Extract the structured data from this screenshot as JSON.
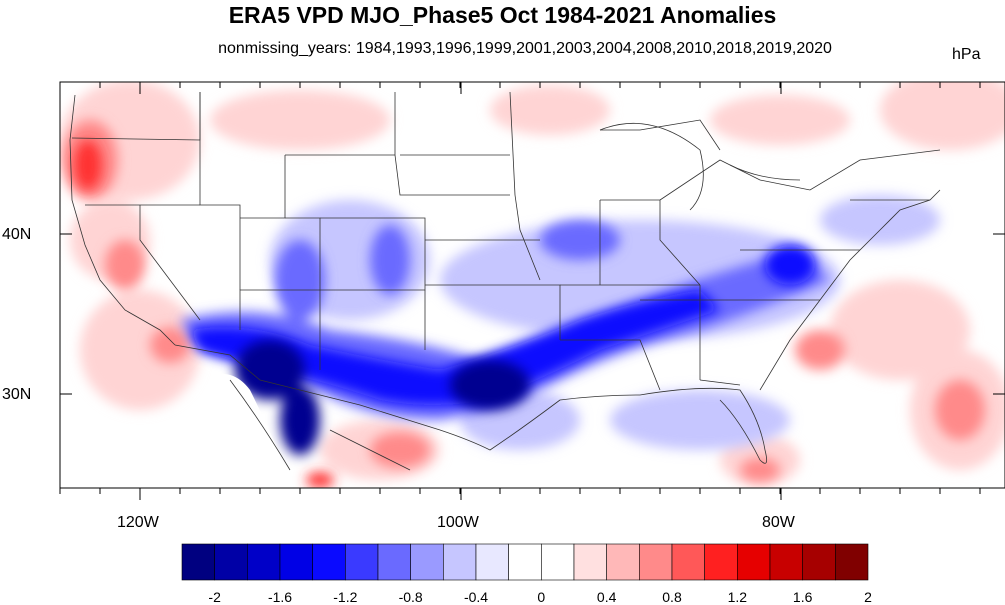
{
  "title": "ERA5 VPD MJO_Phase5 Oct 1984-2021 Anomalies",
  "subtitle": "nonmissing_years: 1984,1993,1996,1999,2001,2003,2004,2008,2010,2018,2019,2020",
  "units": "hPa",
  "lat_labels": [
    "40N",
    "30N"
  ],
  "lon_labels": [
    "120W",
    "100W",
    "80W"
  ],
  "colorbar": {
    "colors": [
      "#000080",
      "#0000a6",
      "#0000c8",
      "#0000e6",
      "#0a0aff",
      "#3a3aff",
      "#6a6aff",
      "#9a9aff",
      "#c6c6ff",
      "#e8e8ff",
      "#ffffff",
      "#ffffff",
      "#ffe0e0",
      "#ffb8b8",
      "#ff8a8a",
      "#ff5858",
      "#ff2020",
      "#e60000",
      "#c80000",
      "#a60000",
      "#800000"
    ],
    "tick_labels": [
      "-2",
      "-1.6",
      "-1.2",
      "-0.8",
      "-0.4",
      "0",
      "0.4",
      "0.8",
      "1.2",
      "1.6",
      "2"
    ]
  }
}
